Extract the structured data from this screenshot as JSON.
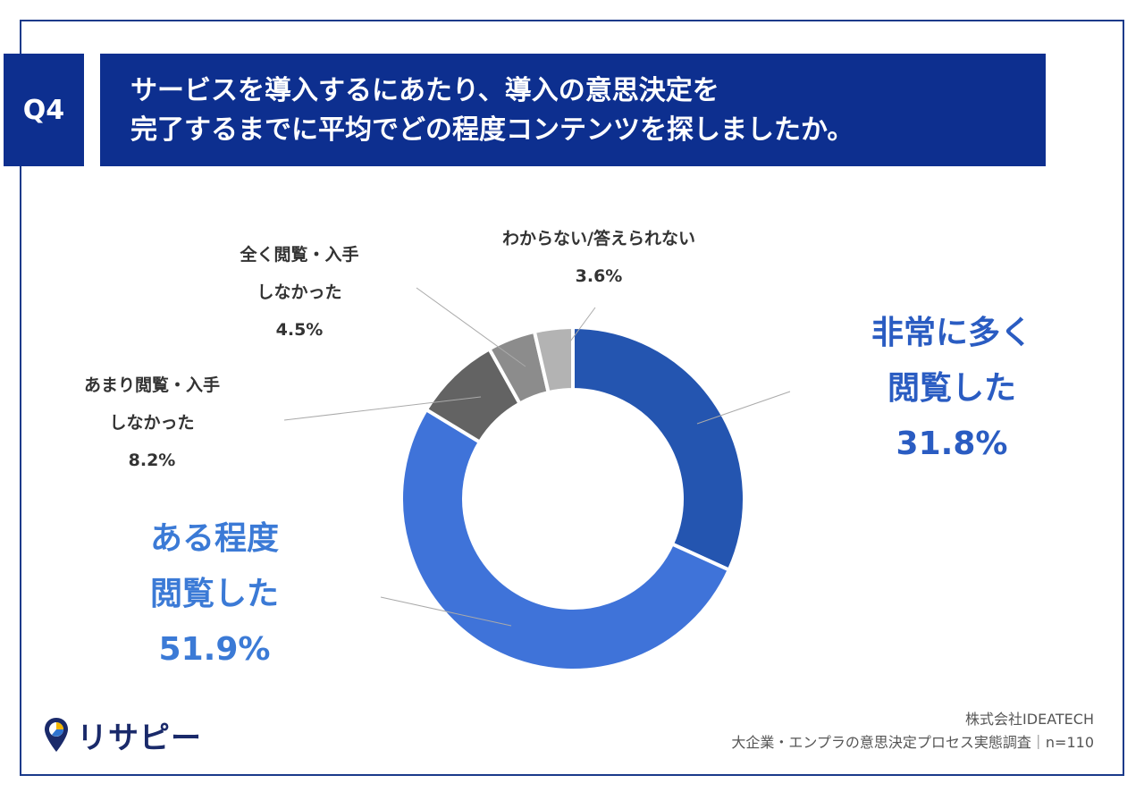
{
  "header": {
    "q_label": "Q4",
    "title_line1": "サービスを導入するにあたり、導入の意思決定を",
    "title_line2": "完了するまでに平均でどの程度コンテンツを探しましたか。"
  },
  "labels": {
    "very_much": {
      "line1": "非常に多く",
      "line2": "閲覧した",
      "pct": "31.8%"
    },
    "somewhat": {
      "line1": "ある程度",
      "line2": "閲覧した",
      "pct": "51.9%"
    },
    "little": {
      "line1": "あまり閲覧・入手",
      "line2": "しなかった",
      "pct": "8.2%"
    },
    "none": {
      "line1": "全く閲覧・入手",
      "line2": "しなかった",
      "pct": "4.5%"
    },
    "unknown": {
      "line1": "わからない/答えられない",
      "pct": "3.6%"
    }
  },
  "footer": {
    "line1": "株式会社IDEATECH",
    "line2": "大企業・エンプラの意思決定プロセス実態調査｜n=110"
  },
  "logo": {
    "text": "リサピー"
  },
  "chart_data": {
    "type": "pie",
    "categories": [
      "非常に多く閲覧した",
      "ある程度閲覧した",
      "あまり閲覧・入手しなかった",
      "全く閲覧・入手しなかった",
      "わからない/答えられない"
    ],
    "values": [
      31.8,
      51.9,
      8.2,
      4.5,
      3.6
    ],
    "colors": [
      "#2455b0",
      "#3f73d9",
      "#636363",
      "#8c8c8c",
      "#b3b3b3"
    ]
  }
}
